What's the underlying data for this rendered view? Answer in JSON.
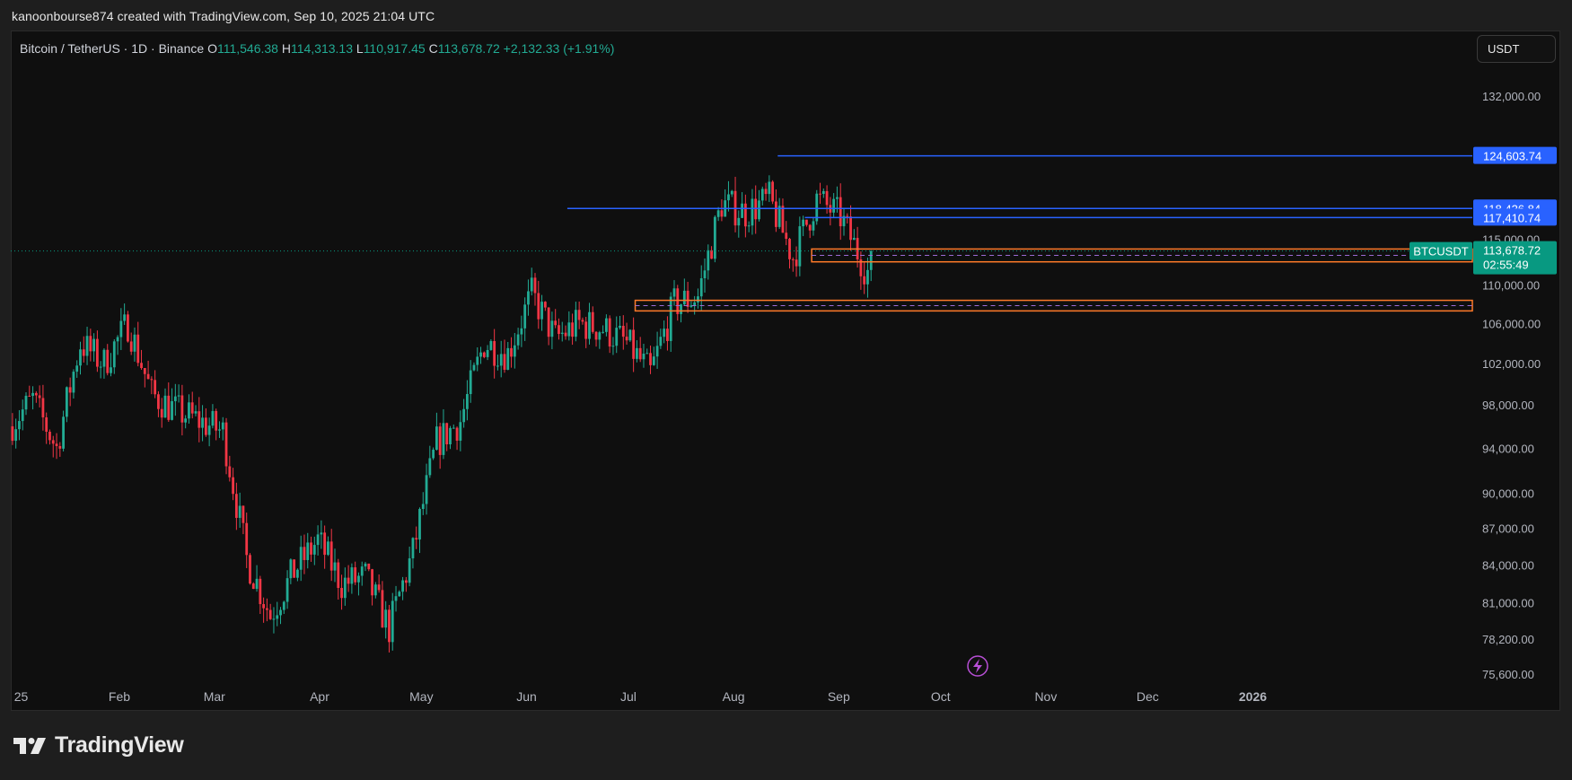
{
  "header": {
    "caption": "kanoonbourse874 created with TradingView.com, Sep 10, 2025 21:04 UTC"
  },
  "legend": {
    "symbol": "Bitcoin / TetherUS · 1D · Binance",
    "o_label": "O",
    "o_value": "111,546.38",
    "h_label": "H",
    "h_value": "114,313.13",
    "l_label": "L",
    "l_value": "110,917.45",
    "c_label": "C",
    "c_value": "113,678.72",
    "change": "+2,132.33 (+1.91%)"
  },
  "currency": "USDT",
  "brand": {
    "name": "TradingView"
  },
  "colors": {
    "up": "#22ab94",
    "down": "#f23645",
    "blue_line": "#2962ff",
    "orange_zone": "#ff7a29",
    "dashed": "#9c6bd6",
    "price_badge": "#089981",
    "background": "#0f0f0f"
  },
  "chart_data": {
    "type": "candlestick",
    "symbol": "BTCUSDT",
    "timeframe": "1D",
    "scale": "log",
    "y_ticks": [
      132000,
      115000,
      110000,
      106000,
      102000,
      98000,
      94000,
      90000,
      87000,
      84000,
      81000,
      78200,
      75600
    ],
    "y_tick_labels": [
      "132,000.00",
      "115,000.00",
      "110,000.00",
      "106,000.00",
      "102,000.00",
      "98,000.00",
      "94,000.00",
      "90,000.00",
      "87,000.00",
      "84,000.00",
      "81,000.00",
      "78,200.00",
      "75,600.00"
    ],
    "x_labels": [
      "25",
      "Feb",
      "Mar",
      "Apr",
      "May",
      "Jun",
      "Jul",
      "Aug",
      "Sep",
      "Oct",
      "Nov",
      "Dec",
      "2026"
    ],
    "x_label_dates": [
      "2025-01-01",
      "2025-02-01",
      "2025-03-01",
      "2025-04-01",
      "2025-05-01",
      "2025-06-01",
      "2025-07-01",
      "2025-08-01",
      "2025-09-01",
      "2025-10-01",
      "2025-11-01",
      "2025-12-01",
      "2026-01-01"
    ],
    "x_start": "2024-12-31",
    "candles_weekly_path": [
      [
        96000,
        98500
      ],
      [
        98500,
        94000
      ],
      [
        94000,
        104000
      ],
      [
        104000,
        102000
      ],
      [
        102000,
        106000
      ],
      [
        106000,
        99000
      ],
      [
        99000,
        97500
      ],
      [
        97500,
        96500
      ],
      [
        96500,
        95500
      ],
      [
        95500,
        84500
      ],
      [
        84500,
        80000
      ],
      [
        80000,
        83500
      ],
      [
        83500,
        86000
      ],
      [
        86000,
        82500
      ],
      [
        82500,
        83000
      ],
      [
        83000,
        79000
      ],
      [
        79000,
        85000
      ],
      [
        85000,
        94500
      ],
      [
        94500,
        96500
      ],
      [
        96500,
        104000
      ],
      [
        104000,
        103000
      ],
      [
        103000,
        109000
      ],
      [
        109000,
        104500
      ],
      [
        104500,
        106000
      ],
      [
        106000,
        105500
      ],
      [
        105500,
        104000
      ],
      [
        104000,
        101000
      ],
      [
        101000,
        108000
      ],
      [
        108000,
        108800
      ],
      [
        108800,
        119000
      ],
      [
        119000,
        118000
      ],
      [
        118000,
        119500
      ],
      [
        119500,
        113000
      ],
      [
        113000,
        119500
      ],
      [
        119500,
        117500
      ],
      [
        117500,
        112000
      ],
      [
        112000,
        108000
      ],
      [
        108000,
        111000
      ],
      [
        111000,
        113679
      ]
    ],
    "horizontal_levels": [
      {
        "price": 124603.74,
        "label": "124,603.74",
        "from": "2025-08-14"
      },
      {
        "price": 118436.84,
        "label": "118,436.84",
        "from": "2025-06-13"
      },
      {
        "price": 117410.74,
        "label": "117,410.74",
        "from": "2025-08-22"
      }
    ],
    "zones": [
      {
        "top": 113900,
        "bottom": 112500,
        "from": "2025-08-24"
      },
      {
        "top": 108400,
        "bottom": 107300,
        "from": "2025-07-03"
      }
    ],
    "current_price": {
      "symbol": "BTCUSDT",
      "price": 113678.72,
      "label": "113,678.72",
      "countdown": "02:55:49"
    },
    "last_date": "2025-09-10"
  }
}
